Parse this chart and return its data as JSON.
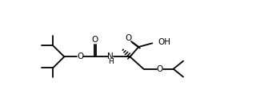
{
  "bg_color": "#ffffff",
  "line_color": "#000000",
  "lw": 1.3,
  "fs": 7.5,
  "fig_width": 3.2,
  "fig_height": 1.32,
  "dpi": 100,
  "xlim": [
    0,
    320
  ],
  "ylim": [
    0,
    132
  ]
}
